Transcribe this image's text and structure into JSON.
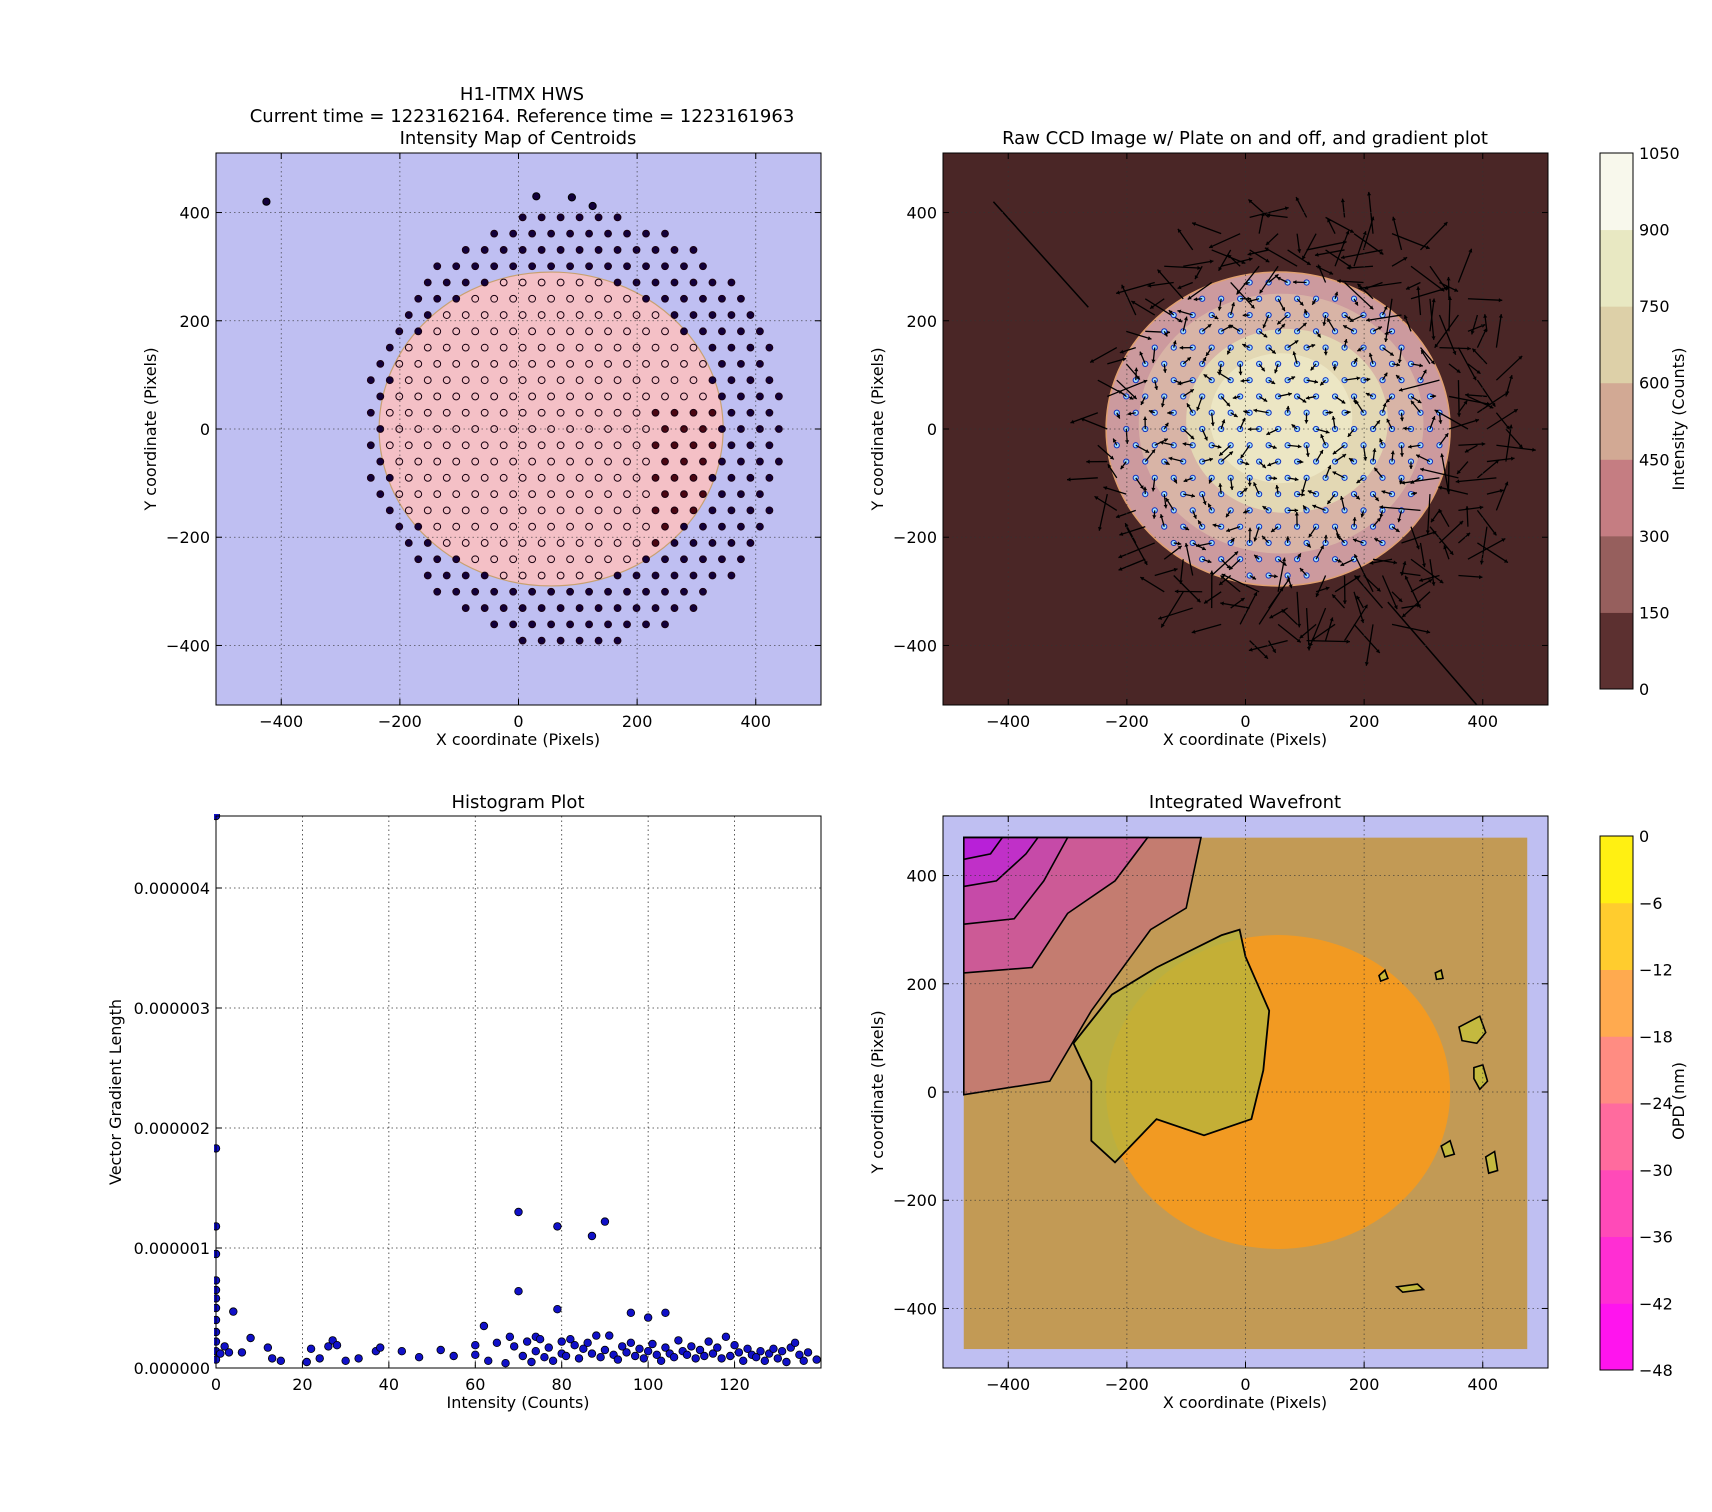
{
  "figure": {
    "suptitle_line1": "H1-ITMX HWS",
    "suptitle_line2": "Current time = 1223162164. Reference time = 1223161963"
  },
  "chart_data": [
    {
      "id": "centroids",
      "type": "scatter",
      "title": "Intensity Map of Centroids",
      "xlabel": "X coordinate (Pixels)",
      "ylabel": "Y coordinate (Pixels)",
      "xlim": [
        -510,
        510
      ],
      "ylim": [
        -510,
        510
      ],
      "xticks": [
        -400,
        -200,
        0,
        200,
        400
      ],
      "yticks": [
        -400,
        -200,
        0,
        200,
        400
      ],
      "grid": true,
      "background": "#bfbff2",
      "beam": {
        "cx": 55,
        "cy": 0,
        "rx": 290,
        "ry": 290,
        "fill": "#f4c0c6",
        "edge": "#c8a070"
      },
      "grid_spacing": 32,
      "aperture_radius": 430,
      "outlier_points": [
        [
          -425,
          420
        ],
        [
          30,
          430
        ],
        [
          90,
          428
        ],
        [
          125,
          412
        ]
      ]
    },
    {
      "id": "raw_ccd",
      "type": "heatmap",
      "title": "Raw CCD Image w/ Plate on and off, and gradient plot",
      "xlabel": "X coordinate (Pixels)",
      "ylabel": "Y coordinate (Pixels)",
      "xlim": [
        -510,
        510
      ],
      "ylim": [
        -510,
        510
      ],
      "xticks": [
        -400,
        -200,
        0,
        200,
        400
      ],
      "yticks": [
        -400,
        -200,
        0,
        200,
        400
      ],
      "grid": true,
      "colorbar": {
        "label": "Intensity (Counts)",
        "ticks": [
          "0",
          "150",
          "300",
          "450",
          "600",
          "750",
          "900",
          "1050"
        ],
        "colors": [
          "#5c3030",
          "#965f5d",
          "#c57d82",
          "#d2a994",
          "#ddd0a8",
          "#e8e8c2",
          "#f8f8ec"
        ]
      },
      "background": "#4a2626",
      "rings": [
        {
          "cx": 55,
          "cy": 0,
          "r": 290,
          "fill": "#cc9a9e"
        },
        {
          "cx": 60,
          "cy": 10,
          "r": 240,
          "fill": "#d8b4a6"
        },
        {
          "cx": 70,
          "cy": 15,
          "r": 170,
          "fill": "#e3d8b4"
        },
        {
          "cx": 60,
          "cy": 20,
          "r": 120,
          "fill": "#ece6c4"
        }
      ]
    },
    {
      "id": "histogram",
      "type": "scatter",
      "title": "Histogram Plot",
      "xlabel": "Intensity (Counts)",
      "ylabel": "Vector Gradient Length",
      "xlim": [
        0,
        140
      ],
      "ylim": [
        0,
        4.6e-06
      ],
      "xticks": [
        "0",
        "20",
        "40",
        "60",
        "80",
        "100",
        "120"
      ],
      "xtick_values": [
        0,
        20,
        40,
        60,
        80,
        100,
        120
      ],
      "yticks": [
        "0.000000",
        "0.000001",
        "0.000002",
        "0.000003",
        "0.000004"
      ],
      "ytick_values": [
        0,
        1e-06,
        2e-06,
        3e-06,
        4e-06
      ],
      "grid": true,
      "points": [
        [
          0,
          4.6e-06
        ],
        [
          0,
          1.83e-06
        ],
        [
          0,
          1.18e-06
        ],
        [
          0,
          9.5e-07
        ],
        [
          0,
          7.3e-07
        ],
        [
          0,
          6.5e-07
        ],
        [
          0,
          5.8e-07
        ],
        [
          0,
          5e-07
        ],
        [
          0,
          4e-07
        ],
        [
          0,
          3e-07
        ],
        [
          0,
          2.2e-07
        ],
        [
          0,
          1.4e-07
        ],
        [
          0,
          7e-08
        ],
        [
          1,
          1.2e-07
        ],
        [
          2,
          1.8e-07
        ],
        [
          3,
          1.3e-07
        ],
        [
          4,
          4.7e-07
        ],
        [
          6,
          1.3e-07
        ],
        [
          8,
          2.5e-07
        ],
        [
          12,
          1.7e-07
        ],
        [
          13,
          8e-08
        ],
        [
          15,
          6e-08
        ],
        [
          21,
          5e-08
        ],
        [
          22,
          1.6e-07
        ],
        [
          24,
          8e-08
        ],
        [
          26,
          1.8e-07
        ],
        [
          27,
          2.3e-07
        ],
        [
          28,
          1.9e-07
        ],
        [
          30,
          6e-08
        ],
        [
          33,
          8e-08
        ],
        [
          37,
          1.4e-07
        ],
        [
          38,
          1.7e-07
        ],
        [
          43,
          1.4e-07
        ],
        [
          47,
          9e-08
        ],
        [
          52,
          1.5e-07
        ],
        [
          55,
          1e-07
        ],
        [
          60,
          1.1e-07
        ],
        [
          60,
          1.9e-07
        ],
        [
          62,
          3.5e-07
        ],
        [
          63,
          6e-08
        ],
        [
          65,
          2.1e-07
        ],
        [
          67,
          4e-08
        ],
        [
          68,
          2.6e-07
        ],
        [
          69,
          1.8e-07
        ],
        [
          70,
          6.4e-07
        ],
        [
          70,
          1.3e-06
        ],
        [
          71,
          1e-07
        ],
        [
          72,
          2.2e-07
        ],
        [
          73,
          5e-08
        ],
        [
          74,
          2.6e-07
        ],
        [
          74,
          1.4e-07
        ],
        [
          75,
          2.4e-07
        ],
        [
          76,
          9e-08
        ],
        [
          77,
          1.7e-07
        ],
        [
          78,
          6e-08
        ],
        [
          79,
          4.9e-07
        ],
        [
          79,
          1.18e-06
        ],
        [
          80,
          2.2e-07
        ],
        [
          80,
          1.2e-07
        ],
        [
          81,
          1e-07
        ],
        [
          82,
          2.4e-07
        ],
        [
          83,
          1.9e-07
        ],
        [
          84,
          8e-08
        ],
        [
          85,
          1.6e-07
        ],
        [
          86,
          2.1e-07
        ],
        [
          87,
          1.1e-06
        ],
        [
          87,
          1.2e-07
        ],
        [
          88,
          2.7e-07
        ],
        [
          89,
          9e-08
        ],
        [
          90,
          1.22e-06
        ],
        [
          90,
          1.5e-07
        ],
        [
          91,
          2.7e-07
        ],
        [
          92,
          1.1e-07
        ],
        [
          93,
          7e-08
        ],
        [
          94,
          1.8e-07
        ],
        [
          95,
          1.3e-07
        ],
        [
          96,
          4.6e-07
        ],
        [
          96,
          2.1e-07
        ],
        [
          97,
          1e-07
        ],
        [
          98,
          1.6e-07
        ],
        [
          99,
          8e-08
        ],
        [
          100,
          4.2e-07
        ],
        [
          100,
          1.4e-07
        ],
        [
          101,
          2e-07
        ],
        [
          102,
          1.1e-07
        ],
        [
          103,
          6e-08
        ],
        [
          104,
          4.6e-07
        ],
        [
          104,
          1.7e-07
        ],
        [
          105,
          1.2e-07
        ],
        [
          106,
          9e-08
        ],
        [
          107,
          2.3e-07
        ],
        [
          108,
          1.4e-07
        ],
        [
          109,
          1.1e-07
        ],
        [
          110,
          1.8e-07
        ],
        [
          111,
          8e-08
        ],
        [
          112,
          1.5e-07
        ],
        [
          113,
          1e-07
        ],
        [
          114,
          2.2e-07
        ],
        [
          115,
          1.2e-07
        ],
        [
          116,
          1.7e-07
        ],
        [
          117,
          8e-08
        ],
        [
          118,
          2.6e-07
        ],
        [
          119,
          1e-07
        ],
        [
          120,
          1.9e-07
        ],
        [
          121,
          1.3e-07
        ],
        [
          122,
          6e-08
        ],
        [
          123,
          1.6e-07
        ],
        [
          124,
          1.1e-07
        ],
        [
          125,
          9e-08
        ],
        [
          126,
          1.4e-07
        ],
        [
          127,
          6e-08
        ],
        [
          128,
          1.2e-07
        ],
        [
          129,
          1.6e-07
        ],
        [
          130,
          8e-08
        ],
        [
          131,
          1.4e-07
        ],
        [
          132,
          5e-08
        ],
        [
          133,
          1.7e-07
        ],
        [
          134,
          2.1e-07
        ],
        [
          135,
          1.1e-07
        ],
        [
          136,
          6e-08
        ],
        [
          137,
          1.3e-07
        ],
        [
          139,
          7e-08
        ]
      ]
    },
    {
      "id": "wavefront",
      "type": "heatmap",
      "title": "Integrated Wavefront",
      "xlabel": "X coordinate (Pixels)",
      "ylabel": "Y coordinate (Pixels)",
      "xlim": [
        -510,
        510
      ],
      "ylim": [
        -510,
        510
      ],
      "xticks": [
        -400,
        -200,
        0,
        200,
        400
      ],
      "yticks": [
        -400,
        -200,
        0,
        200,
        400
      ],
      "grid": true,
      "colorbar": {
        "label": "OPD (nm)",
        "ticks": [
          "-48",
          "-42",
          "-36",
          "-30",
          "-24",
          "-18",
          "-12",
          "-6",
          "0"
        ],
        "colors": [
          "#ff14ee",
          "#ff2ed3",
          "#ff4ab8",
          "#ff6b9e",
          "#ff8c82",
          "#ffaa4f",
          "#ffcc2e",
          "#fff012"
        ]
      },
      "background": "#bfbff2",
      "field": {
        "xmin": -475,
        "xmax": 475,
        "ymin": -475,
        "ymax": 470,
        "fill": "#c29a55"
      },
      "beam": {
        "cx": 55,
        "cy": 0,
        "r": 290,
        "fill": "#f29a22"
      }
    }
  ]
}
